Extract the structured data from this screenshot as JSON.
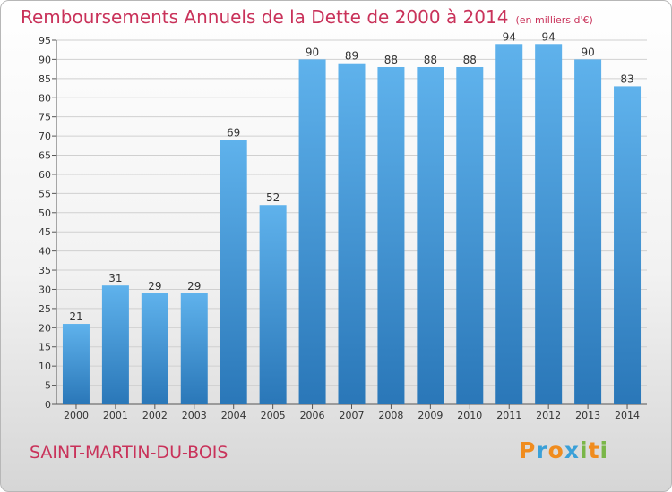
{
  "header": {
    "title": "Remboursements Annuels de la Dette de 2000 à 2014",
    "subtitle": "(en milliers d'€)"
  },
  "footer": {
    "commune": "SAINT-MARTIN-DU-BOIS",
    "logo_text": "Proxiti",
    "logo_colors": [
      "#f08c1e",
      "#3aa0d8",
      "#f08c1e",
      "#3aa0d8",
      "#7ab648",
      "#f08c1e",
      "#7ab648"
    ]
  },
  "chart_data": {
    "type": "bar",
    "categories": [
      "2000",
      "2001",
      "2002",
      "2003",
      "2004",
      "2005",
      "2006",
      "2007",
      "2008",
      "2009",
      "2010",
      "2011",
      "2012",
      "2013",
      "2014"
    ],
    "values": [
      21,
      31,
      29,
      29,
      69,
      52,
      90,
      89,
      88,
      88,
      88,
      94,
      94,
      90,
      83
    ],
    "title": "Remboursements Annuels de la Dette de 2000 à 2014",
    "xlabel": "",
    "ylabel": "",
    "ylim": [
      0,
      95
    ],
    "yticks": [
      0,
      5,
      10,
      15,
      20,
      25,
      30,
      35,
      40,
      45,
      50,
      55,
      60,
      65,
      70,
      75,
      80,
      85,
      90,
      95
    ],
    "grid": true,
    "bar_color": "#3f8fd0",
    "text_color": "#333333"
  }
}
